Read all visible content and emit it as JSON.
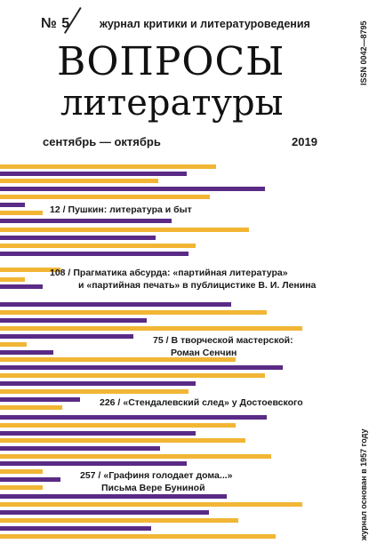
{
  "masthead": {
    "issue_number": "№ 5",
    "subtitle": "журнал критики и литературоведения",
    "title_line1": "ВОПРОСЫ",
    "title_line2": "литературы",
    "issn": "ISSN 0042—8795",
    "issue_dates": "сентябрь — октябрь",
    "year": "2019",
    "founded": "журнал основан в 1957 году"
  },
  "colors": {
    "accent_purple": "#5a2b86",
    "accent_yellow": "#f2b635",
    "text": "#1a1a1a",
    "background": "#ffffff"
  },
  "contents": [
    {
      "page": "12 /",
      "title": "Пушкин: литература и быт"
    },
    {
      "page": "108 /",
      "title": "Прагматика абсурда: «партийная литература»",
      "title_line2": "и «партийная печать» в публицистике В. И. Ленина"
    },
    {
      "page": "75 /",
      "title": "В творческой мастерской:",
      "title_line2": "Роман Сенчин"
    },
    {
      "page": "226 /",
      "title": "«Стендалевский след» у Достоевского"
    },
    {
      "page": "257 /",
      "title": "«Графиня голодает дома...»",
      "title_line2": "Письма Вере Буниной"
    }
  ]
}
